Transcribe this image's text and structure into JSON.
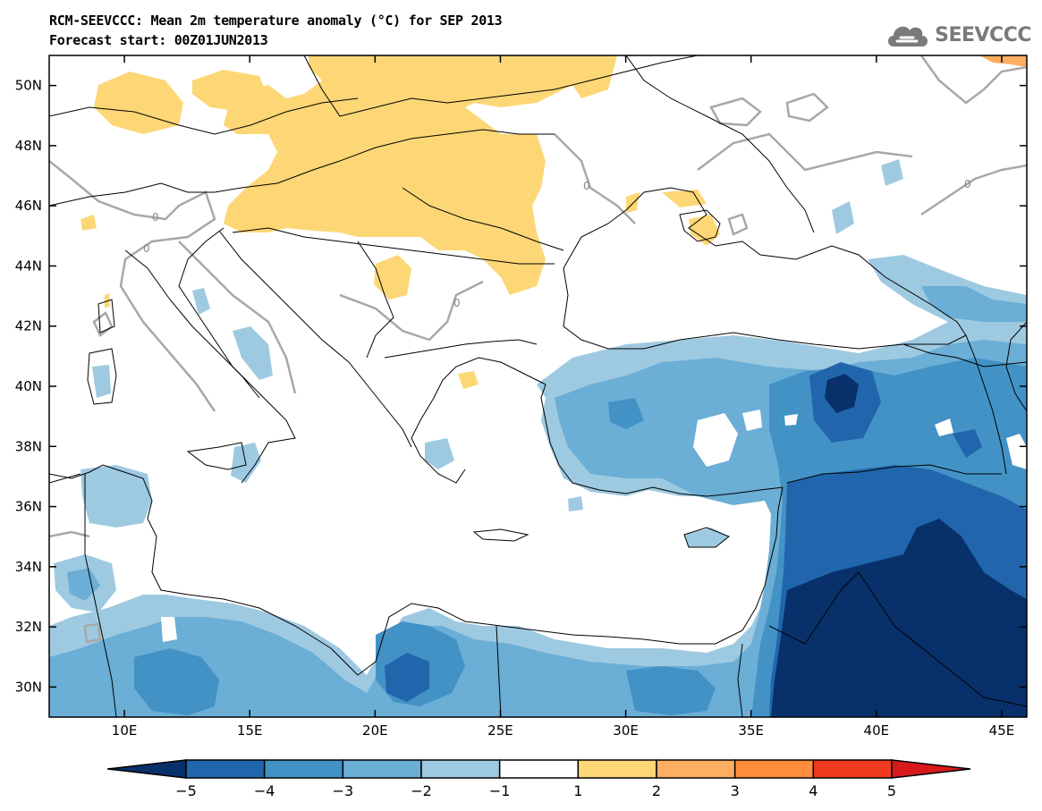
{
  "header": {
    "title_line1": "RCM-SEEVCCC: Mean 2m temperature anomaly (°C) for SEP 2013",
    "title_line2": "Forecast start: 00Z01JUN2013"
  },
  "logo": {
    "text": "SEEVCCC",
    "icon": "cloud-logo-icon"
  },
  "map": {
    "lon_range": [
      7,
      46
    ],
    "lat_range": [
      29,
      51
    ],
    "lon_ticks": [
      10,
      15,
      20,
      25,
      30,
      35,
      40,
      45
    ],
    "lon_tick_labels": [
      "10E",
      "15E",
      "20E",
      "25E",
      "30E",
      "35E",
      "40E",
      "45E"
    ],
    "lat_ticks": [
      30,
      32,
      34,
      36,
      38,
      40,
      42,
      44,
      46,
      48,
      50
    ],
    "lat_tick_labels": [
      "30N",
      "32N",
      "34N",
      "36N",
      "38N",
      "40N",
      "42N",
      "44N",
      "46N",
      "48N",
      "50N"
    ],
    "contour_labels": [
      "0",
      "0",
      "0",
      "0",
      "0"
    ]
  },
  "colorbar": {
    "levels": [
      "−5",
      "−4",
      "−3",
      "−2",
      "−1",
      "1",
      "2",
      "3",
      "4",
      "5"
    ],
    "colors": [
      "#08306b",
      "#2166ac",
      "#4292c6",
      "#6baed6",
      "#9ecae1",
      "#ffffff",
      "#fdd776",
      "#fdae61",
      "#fd8d3c",
      "#f03b20",
      "#d7191c"
    ]
  },
  "anomaly_colors": {
    "warm_1_2": "#fdd776",
    "warm_2_3": "#fdae61",
    "cold_m1_m2": "#9ecae1",
    "cold_m2_m3": "#6baed6",
    "cold_m3_m4": "#4292c6",
    "cold_m4_m5": "#2166ac",
    "cold_below_m5": "#08306b",
    "zero_contour": "#a8a8a8"
  }
}
